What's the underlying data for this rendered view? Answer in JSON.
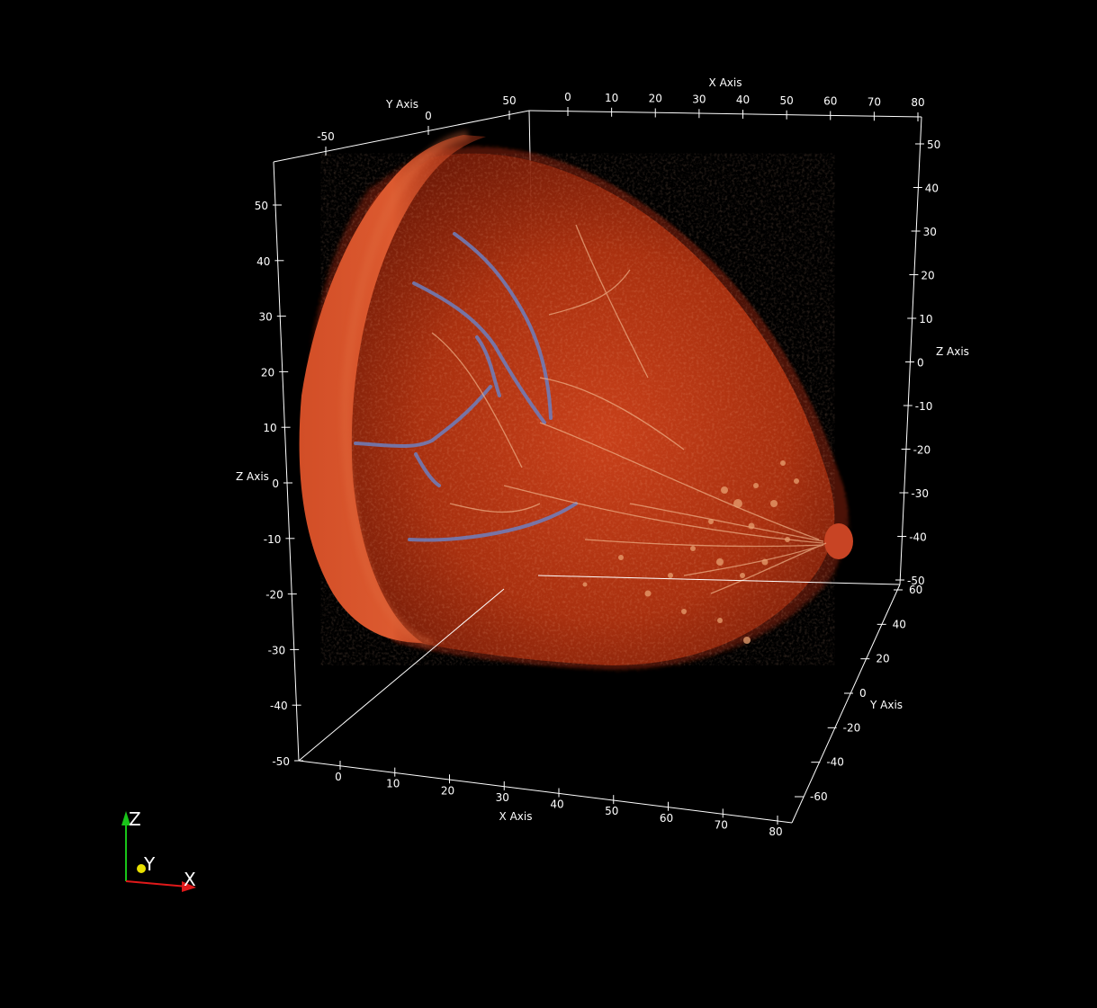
{
  "viewer": {
    "background": "#000000",
    "line_color": "#ffffff",
    "volume_colors": {
      "tissue_base": "#b8310c",
      "tissue_bright": "#e0532a",
      "skin_surface": "#d9542c",
      "vessel_blue": "#6a78b8",
      "bright_fiber": "#f0c39a"
    }
  },
  "axes": {
    "x_top": {
      "title": "X Axis",
      "ticks": [
        "0",
        "10",
        "20",
        "30",
        "40",
        "50",
        "60",
        "70",
        "80"
      ]
    },
    "x_bottom": {
      "title": "X Axis",
      "ticks": [
        "0",
        "10",
        "20",
        "30",
        "40",
        "50",
        "60",
        "70",
        "80"
      ]
    },
    "y_top": {
      "title": "Y Axis",
      "ticks": [
        "-50",
        "0",
        "50"
      ]
    },
    "y_right": {
      "title": "Y Axis",
      "ticks": [
        "60",
        "40",
        "20",
        "0",
        "-20",
        "-40",
        "-60"
      ]
    },
    "z_left": {
      "title": "Z Axis",
      "ticks": [
        "50",
        "40",
        "30",
        "20",
        "10",
        "0",
        "-10",
        "-20",
        "-30",
        "-40",
        "-50"
      ]
    },
    "z_right": {
      "title": "Z Axis",
      "ticks": [
        "50",
        "40",
        "30",
        "20",
        "10",
        "0",
        "-10",
        "-20",
        "-30",
        "-40",
        "-50"
      ]
    }
  },
  "orientation": {
    "x": {
      "label": "X",
      "color": "#e0191a"
    },
    "y": {
      "label": "Y",
      "color": "#e8e000"
    },
    "z": {
      "label": "Z",
      "color": "#19c419"
    }
  }
}
